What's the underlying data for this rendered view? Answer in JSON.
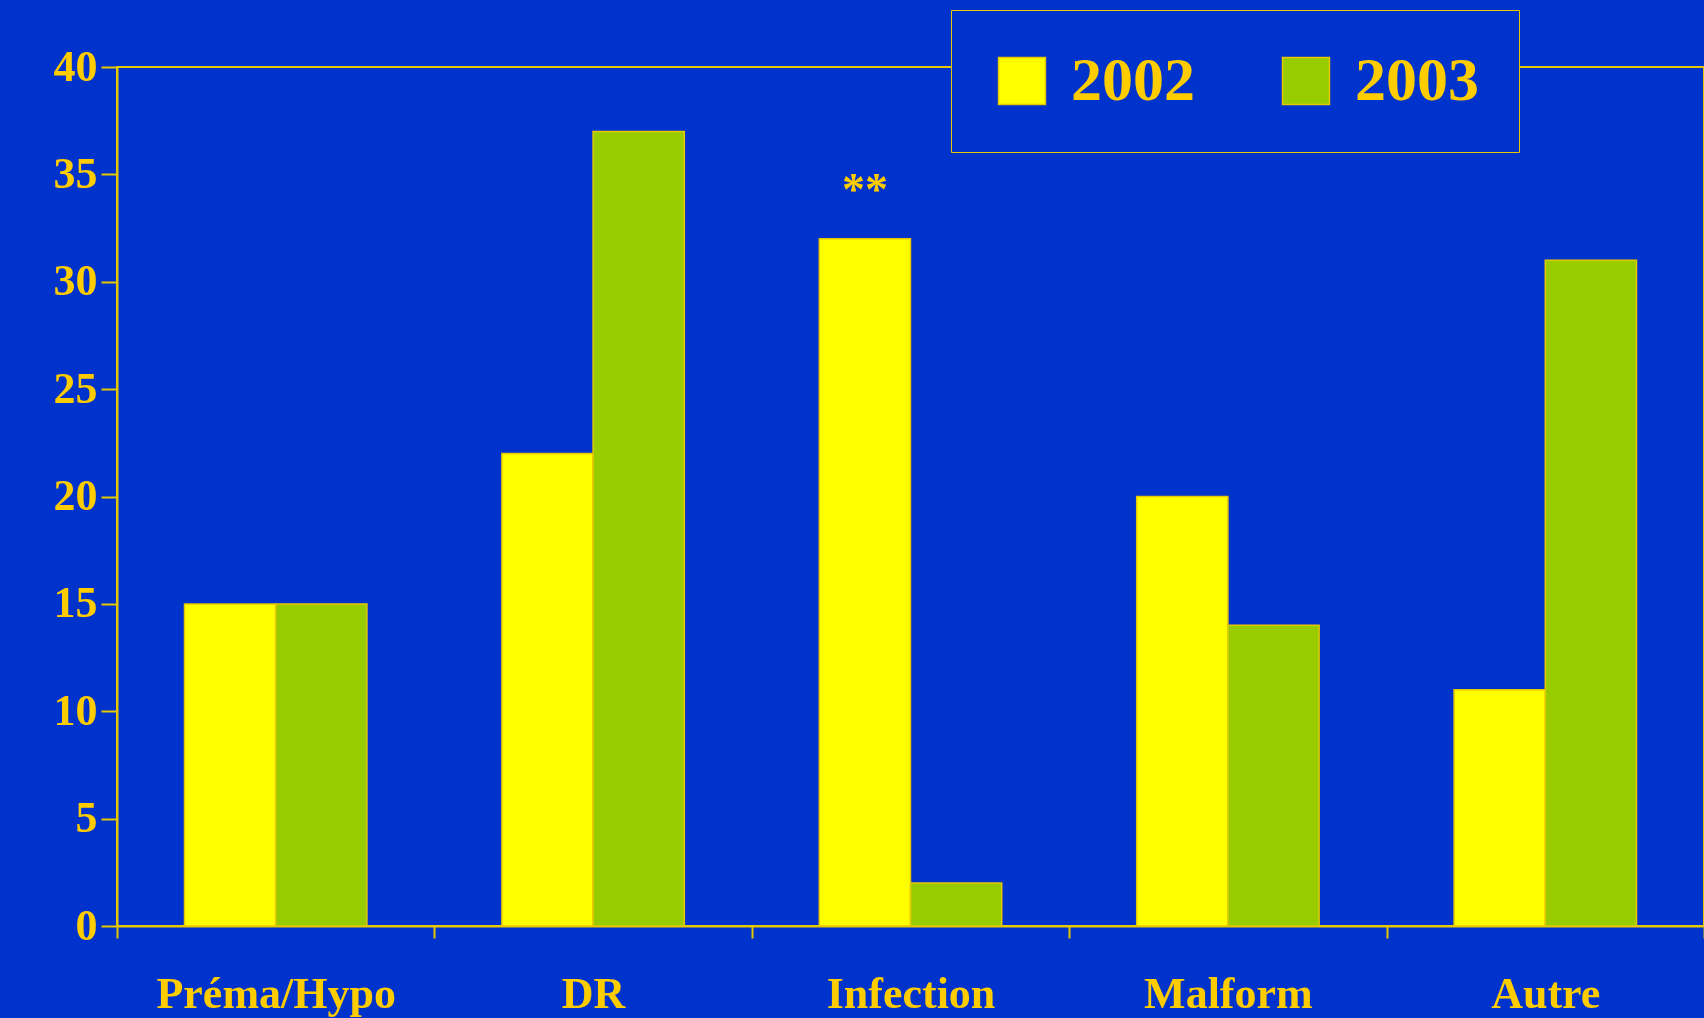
{
  "chart_data": {
    "type": "bar",
    "categories": [
      "Préma/Hypo",
      "DR",
      "Infection",
      "Malform",
      "Autre"
    ],
    "series": [
      {
        "name": "2002",
        "color": "#ffff00",
        "values": [
          15,
          22,
          32,
          20,
          11
        ]
      },
      {
        "name": "2003",
        "color": "#99cc00",
        "values": [
          15,
          37,
          2,
          14,
          31
        ]
      }
    ],
    "ylim": [
      0,
      40
    ],
    "yticks": [
      0,
      5,
      10,
      15,
      20,
      25,
      30,
      35,
      40
    ],
    "grid": false,
    "legend": "top right",
    "annotations": [
      {
        "text": "**",
        "x": "Infection",
        "y": 32
      }
    ]
  }
}
